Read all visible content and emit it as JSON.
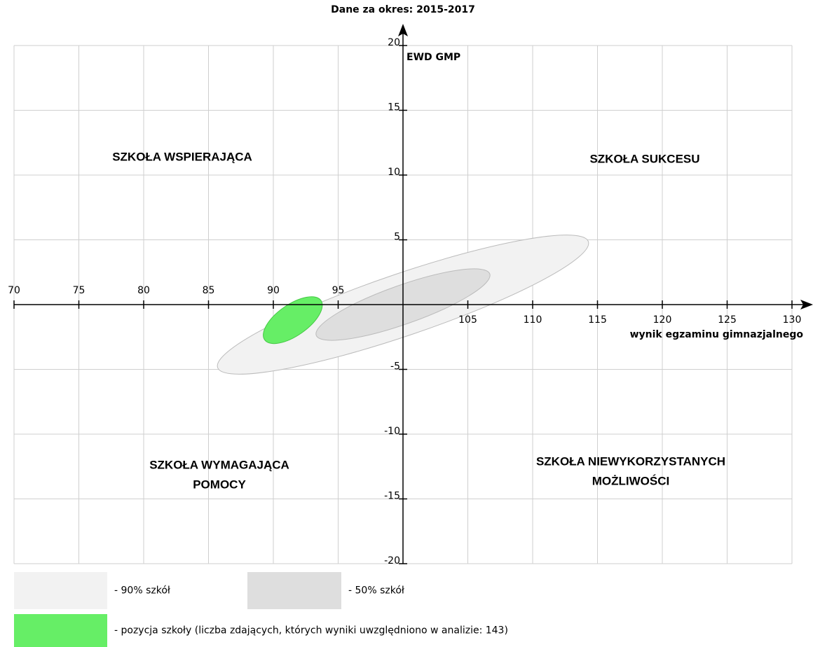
{
  "chart_data": {
    "type": "ellipse",
    "title": "Dane za okres: 2015-2017",
    "x_label": "wynik egzaminu gimnazjalnego",
    "y_label": "EWD GMP",
    "xlim": [
      70,
      130
    ],
    "ylim": [
      -20,
      20
    ],
    "xticks": [
      70,
      75,
      80,
      85,
      90,
      95,
      105,
      110,
      115,
      120,
      125,
      130
    ],
    "yticks": [
      -20,
      -15,
      -10,
      -5,
      5,
      10,
      15,
      20
    ],
    "axis_cross": [
      100,
      0
    ],
    "grid": true,
    "series": [
      {
        "name": "- 90% szkół",
        "color": "#f2f2f2",
        "x": 100,
        "y": 0,
        "rx": 15.1,
        "ry": 2.4,
        "angle": 18.8
      },
      {
        "name": "- 50% szkół",
        "color": "#dedede",
        "x": 100,
        "y": 0,
        "rx": 7.1,
        "ry": 1.5,
        "angle": 19.5
      },
      {
        "name": "- pozycja szkoły (liczba zdających, których wyniki uwzględniono w analizie: 143)",
        "color": "#66ee66",
        "x": 91.5,
        "y": -1.2,
        "rx": 2.65,
        "ry": 1.2,
        "angle": 35
      }
    ],
    "annotations": [
      {
        "lines": [
          "SZKOŁA WSPIERAJĄCA"
        ]
      },
      {
        "lines": [
          "SZKOŁA SUKCESU"
        ]
      },
      {
        "lines": [
          "SZKOŁA WYMAGAJĄCA",
          "POMOCY"
        ]
      },
      {
        "lines": [
          "SZKOŁA NIEWYKORZYSTANYCH",
          "MOŻLIWOŚCI"
        ]
      }
    ]
  }
}
